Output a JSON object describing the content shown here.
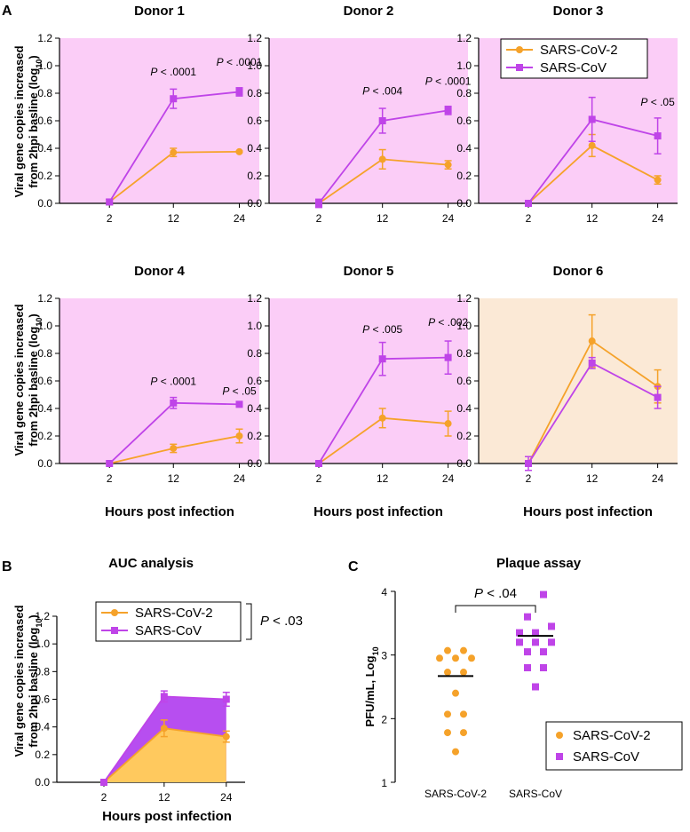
{
  "colors": {
    "sars_cov2": "#f5a22a",
    "sars_cov": "#bf44e8",
    "bg_pink": "#fbcdf7",
    "bg_peach": "#fbe9d6",
    "auc_fill_cov2": "#ffc95e",
    "auc_fill_cov": "#b74ef0"
  },
  "panels": {
    "A": "A",
    "B": "B",
    "C": "C"
  },
  "shared": {
    "xlabel": "Hours post infection",
    "ylabel_line1": "Viral gene copies increased",
    "ylabel_line2_main": "from 2hpi basline (log",
    "ylabel_line2_sub": "10",
    "ylabel_line2_end": ")"
  },
  "chart_data": [
    {
      "type": "line",
      "title": "Donor 1",
      "categories": [
        "2",
        "12",
        "24"
      ],
      "ylim": [
        0,
        1.2
      ],
      "yticks": [
        "0.0",
        "0.2",
        "0.4",
        "0.6",
        "0.8",
        "1.0",
        "1.2"
      ],
      "background": "pink",
      "series": [
        {
          "name": "SARS-CoV-2",
          "values": [
            0.01,
            0.37,
            0.375
          ],
          "err": [
            0.02,
            0.03,
            0.005
          ]
        },
        {
          "name": "SARS-CoV",
          "values": [
            0.01,
            0.76,
            0.81
          ],
          "err": [
            0.02,
            0.07,
            0.03
          ]
        }
      ],
      "annotations": [
        {
          "text": " < .0001",
          "at": 1,
          "y": 0.93
        },
        {
          "text": " < .0001",
          "at": 2,
          "y": 1.0
        }
      ]
    },
    {
      "type": "line",
      "title": "Donor 2",
      "categories": [
        "2",
        "12",
        "24"
      ],
      "ylim": [
        0,
        1.2
      ],
      "yticks": [
        "0.0",
        "0.2",
        "0.4",
        "0.6",
        "0.8",
        "1.0",
        "1.2"
      ],
      "background": "pink",
      "series": [
        {
          "name": "SARS-CoV-2",
          "values": [
            0.0,
            0.32,
            0.28
          ],
          "err": [
            0.02,
            0.07,
            0.03
          ]
        },
        {
          "name": "SARS-CoV",
          "values": [
            0.0,
            0.6,
            0.675
          ],
          "err": [
            0.03,
            0.09,
            0.03
          ]
        }
      ],
      "annotations": [
        {
          "text": " < .004",
          "at": 1,
          "y": 0.79
        },
        {
          "text": " < .0001",
          "at": 2,
          "y": 0.86
        }
      ]
    },
    {
      "type": "line",
      "title": "Donor 3",
      "categories": [
        "2",
        "12",
        "24"
      ],
      "ylim": [
        0,
        1.2
      ],
      "yticks": [
        "0.0",
        "0.2",
        "0.4",
        "0.6",
        "0.8",
        "1.0",
        "1.2"
      ],
      "background": "pink",
      "legend": true,
      "series": [
        {
          "name": "SARS-CoV-2",
          "values": [
            0.0,
            0.42,
            0.17
          ],
          "err": [
            0.01,
            0.08,
            0.03
          ]
        },
        {
          "name": "SARS-CoV",
          "values": [
            0.0,
            0.61,
            0.49
          ],
          "err": [
            0.01,
            0.16,
            0.13
          ]
        }
      ],
      "annotations": [
        {
          "text": " < .05",
          "at": 2,
          "y": 0.71
        }
      ]
    },
    {
      "type": "line",
      "title": "Donor 4",
      "categories": [
        "2",
        "12",
        "24"
      ],
      "ylim": [
        0,
        1.2
      ],
      "yticks": [
        "0.0",
        "0.2",
        "0.4",
        "0.6",
        "0.8",
        "1.0",
        "1.2"
      ],
      "background": "pink",
      "series": [
        {
          "name": "SARS-CoV-2",
          "values": [
            0.0,
            0.11,
            0.2
          ],
          "err": [
            0.005,
            0.03,
            0.05
          ]
        },
        {
          "name": "SARS-CoV",
          "values": [
            0.0,
            0.44,
            0.43
          ],
          "err": [
            0.005,
            0.04,
            0.005
          ]
        }
      ],
      "annotations": [
        {
          "text": " < .0001",
          "at": 1,
          "y": 0.57
        },
        {
          "text": " < .05",
          "at": 2,
          "y": 0.5
        }
      ]
    },
    {
      "type": "line",
      "title": "Donor 5",
      "categories": [
        "2",
        "12",
        "24"
      ],
      "ylim": [
        0,
        1.2
      ],
      "yticks": [
        "0.0",
        "0.2",
        "0.4",
        "0.6",
        "0.8",
        "1.0",
        "1.2"
      ],
      "background": "pink",
      "series": [
        {
          "name": "SARS-CoV-2",
          "values": [
            0.0,
            0.33,
            0.29
          ],
          "err": [
            0.005,
            0.07,
            0.09
          ]
        },
        {
          "name": "SARS-CoV",
          "values": [
            0.0,
            0.76,
            0.77
          ],
          "err": [
            0.02,
            0.12,
            0.12
          ]
        }
      ],
      "annotations": [
        {
          "text": " < .005",
          "at": 1,
          "y": 0.95
        },
        {
          "text": " < .002",
          "at": 2,
          "y": 1.0
        }
      ]
    },
    {
      "type": "line",
      "title": "Donor 6",
      "categories": [
        "2",
        "12",
        "24"
      ],
      "ylim": [
        0,
        1.2
      ],
      "yticks": [
        "0.0",
        "0.2",
        "0.4",
        "0.6",
        "0.8",
        "1.0",
        "1.2"
      ],
      "background": "peach",
      "series": [
        {
          "name": "SARS-CoV-2",
          "values": [
            0.0,
            0.89,
            0.56
          ],
          "err": [
            0.02,
            0.19,
            0.12
          ]
        },
        {
          "name": "SARS-CoV",
          "values": [
            0.0,
            0.73,
            0.48
          ],
          "err": [
            0.05,
            0.04,
            0.08
          ]
        }
      ],
      "annotations": []
    },
    {
      "type": "area",
      "title": "AUC analysis",
      "categories": [
        "2",
        "12",
        "24"
      ],
      "ylim": [
        0,
        1.2
      ],
      "yticks": [
        "0.0",
        "0.2",
        "0.4",
        "0.6",
        "0.8",
        "1.0",
        "1.2"
      ],
      "legend": true,
      "bracket_label": " < .03",
      "series": [
        {
          "name": "SARS-CoV-2",
          "values": [
            0.0,
            0.39,
            0.33
          ],
          "err": [
            0.005,
            0.06,
            0.04
          ]
        },
        {
          "name": "SARS-CoV",
          "values": [
            0.0,
            0.62,
            0.6
          ],
          "err": [
            0.005,
            0.04,
            0.05
          ]
        }
      ]
    },
    {
      "type": "scatter",
      "title": "Plaque assay",
      "ylabel_main": "PFU/mL, Log",
      "ylabel_sub": "10",
      "ylim": [
        1,
        4
      ],
      "yticks": [
        "1",
        "2",
        "3",
        "4"
      ],
      "categories": [
        "SARS-CoV-2",
        "SARS-CoV"
      ],
      "bracket_label": " < .04",
      "series": [
        {
          "name": "SARS-CoV-2",
          "mean": 2.67,
          "points": [
            {
              "dx": -1,
              "y": 3.07
            },
            {
              "dx": 1,
              "y": 3.07
            },
            {
              "dx": -2,
              "y": 2.95
            },
            {
              "dx": 0,
              "y": 2.95
            },
            {
              "dx": 2,
              "y": 2.95
            },
            {
              "dx": -1,
              "y": 2.73
            },
            {
              "dx": 1,
              "y": 2.73
            },
            {
              "dx": 0,
              "y": 2.4
            },
            {
              "dx": -1,
              "y": 2.07
            },
            {
              "dx": 1,
              "y": 2.07
            },
            {
              "dx": -1,
              "y": 1.78
            },
            {
              "dx": 1,
              "y": 1.78
            },
            {
              "dx": 0,
              "y": 1.48
            }
          ]
        },
        {
          "name": "SARS-CoV",
          "mean": 3.3,
          "points": [
            {
              "dx": 1,
              "y": 3.95
            },
            {
              "dx": -1,
              "y": 3.6
            },
            {
              "dx": 2,
              "y": 3.45
            },
            {
              "dx": -2,
              "y": 3.35
            },
            {
              "dx": 0,
              "y": 3.35
            },
            {
              "dx": -2,
              "y": 3.2
            },
            {
              "dx": 0,
              "y": 3.2
            },
            {
              "dx": 2,
              "y": 3.2
            },
            {
              "dx": -1,
              "y": 3.05
            },
            {
              "dx": 1,
              "y": 3.05
            },
            {
              "dx": -1,
              "y": 2.8
            },
            {
              "dx": 1,
              "y": 2.8
            },
            {
              "dx": 0,
              "y": 2.5
            }
          ]
        }
      ]
    }
  ]
}
